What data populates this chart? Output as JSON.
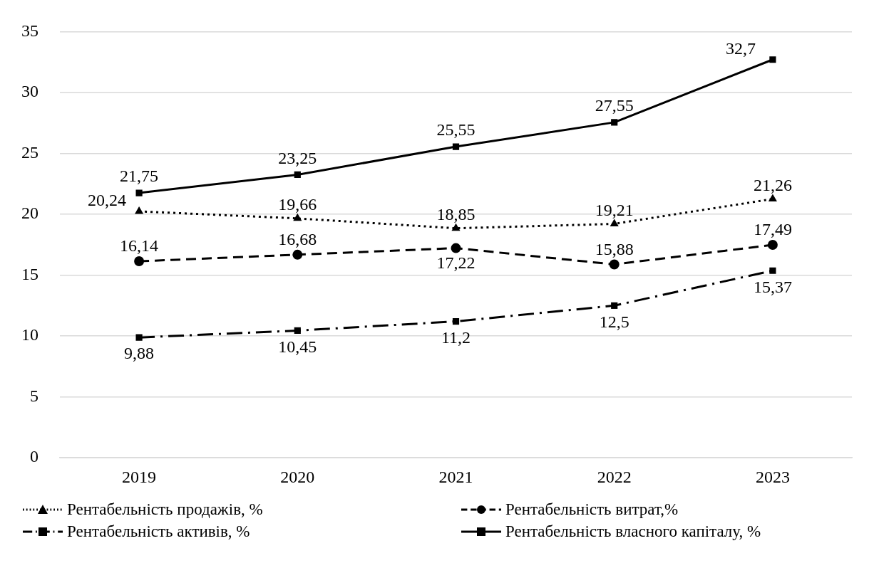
{
  "chart_data": {
    "type": "line",
    "categories": [
      "2019",
      "2020",
      "2021",
      "2022",
      "2023"
    ],
    "series": [
      {
        "name": "Рентабельність продажів, %",
        "color": "#000000",
        "line_style": "dotted",
        "marker": "triangle",
        "values": [
          20.24,
          19.66,
          18.85,
          19.21,
          21.26
        ],
        "value_labels": [
          "20,24",
          "19,66",
          "18,85",
          "19,21",
          "21,26"
        ]
      },
      {
        "name": "Рентабельність витрат,%",
        "color": "#000000",
        "line_style": "dashed",
        "marker": "circle",
        "values": [
          16.14,
          16.68,
          17.22,
          15.88,
          17.49
        ],
        "value_labels": [
          "16,14",
          "16,68",
          "17,22",
          "15,88",
          "17,49"
        ]
      },
      {
        "name": "Рентабельність активів, %",
        "color": "#000000",
        "line_style": "dashdot",
        "marker": "square",
        "values": [
          9.88,
          10.45,
          11.2,
          12.5,
          15.37
        ],
        "value_labels": [
          "9,88",
          "10,45",
          "11,2",
          "12,5",
          "15,37"
        ]
      },
      {
        "name": "Рентабельність власного капіталу, %",
        "color": "#000000",
        "line_style": "solid",
        "marker": "square",
        "values": [
          21.75,
          23.25,
          25.55,
          27.55,
          32.7
        ],
        "value_labels": [
          "21,75",
          "23,25",
          "25,55",
          "27,55",
          "32,7"
        ]
      }
    ],
    "ylim": [
      0,
      35
    ],
    "yticks": [
      0,
      5,
      10,
      15,
      20,
      25,
      30,
      35
    ],
    "grid": "y",
    "legend": "bottom"
  }
}
